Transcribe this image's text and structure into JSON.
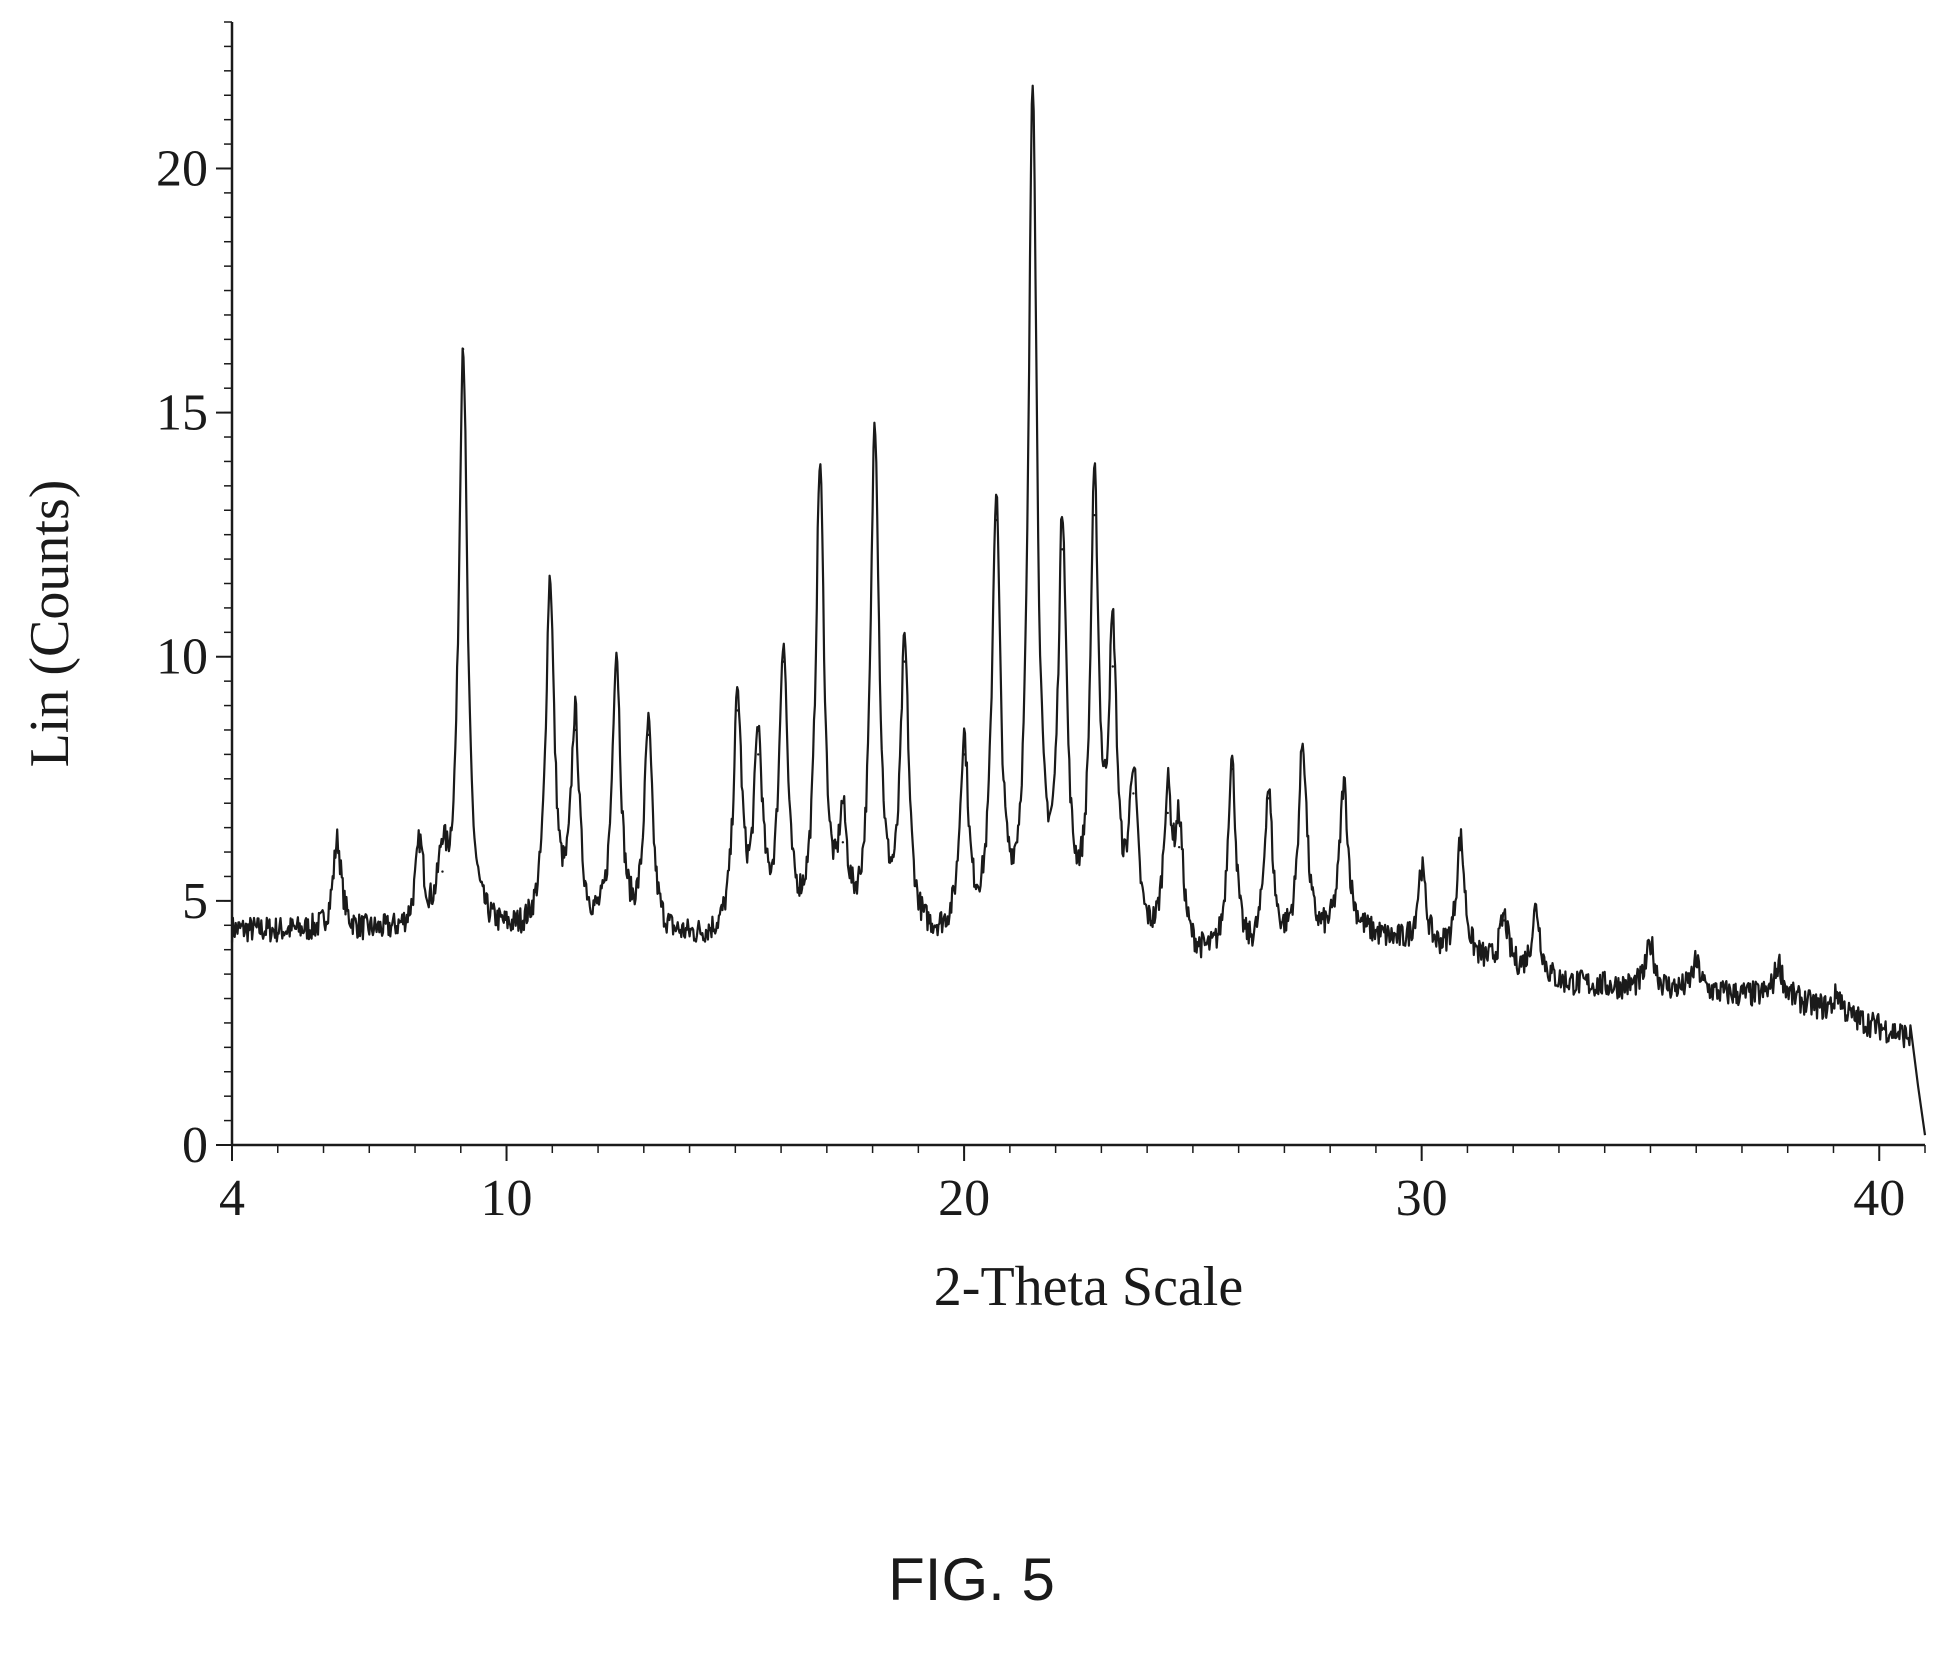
{
  "figure_caption": "FIG. 5",
  "chart_data": {
    "type": "line",
    "title": "",
    "xlabel": "2-Theta Scale",
    "ylabel": "Lin (Counts)",
    "xlim": [
      4,
      41
    ],
    "ylim": [
      0,
      23
    ],
    "x_ticks": [
      4,
      10,
      20,
      30,
      40
    ],
    "x_tick_labels": [
      "4",
      "10",
      "20",
      "30",
      "40"
    ],
    "y_ticks": [
      0,
      5,
      10,
      15,
      20
    ],
    "y_tick_labels": [
      "0",
      "5",
      "10",
      "15",
      "20"
    ],
    "grid": false,
    "legend": "none",
    "line_color": "#1a1a1a",
    "baseline_segments": [
      {
        "x": [
          4.0,
          8.0
        ],
        "y": [
          4.4,
          4.3
        ]
      },
      {
        "x": [
          8.0,
          15.0
        ],
        "y": [
          4.3,
          4.1
        ]
      },
      {
        "x": [
          15.0,
          22.0
        ],
        "y": [
          4.1,
          4.0
        ]
      },
      {
        "x": [
          22.0,
          26.0
        ],
        "y": [
          4.0,
          3.6
        ]
      },
      {
        "x": [
          26.0,
          28.6
        ],
        "y": [
          3.6,
          4.3
        ]
      },
      {
        "x": [
          28.6,
          33.0
        ],
        "y": [
          4.3,
          3.3
        ]
      },
      {
        "x": [
          33.0,
          38.0
        ],
        "y": [
          3.3,
          3.0
        ]
      },
      {
        "x": [
          38.0,
          40.7
        ],
        "y": [
          3.0,
          2.2
        ]
      }
    ],
    "cutoff": {
      "x_start": 40.7,
      "x_end": 41.0,
      "y_end": 0.2
    },
    "peaks": [
      {
        "x": 6.3,
        "y": 6.2
      },
      {
        "x": 8.1,
        "y": 6.0
      },
      {
        "x": 8.6,
        "y": 5.6
      },
      {
        "x": 9.05,
        "y": 16.3
      },
      {
        "x": 10.95,
        "y": 11.4
      },
      {
        "x": 11.5,
        "y": 8.5
      },
      {
        "x": 12.4,
        "y": 9.9
      },
      {
        "x": 13.1,
        "y": 8.4
      },
      {
        "x": 15.05,
        "y": 8.9
      },
      {
        "x": 15.5,
        "y": 8.0
      },
      {
        "x": 16.05,
        "y": 9.9
      },
      {
        "x": 16.85,
        "y": 13.6
      },
      {
        "x": 17.35,
        "y": 6.2
      },
      {
        "x": 18.05,
        "y": 14.5
      },
      {
        "x": 18.7,
        "y": 9.9
      },
      {
        "x": 20.0,
        "y": 8.0
      },
      {
        "x": 20.7,
        "y": 12.8
      },
      {
        "x": 21.5,
        "y": 21.4
      },
      {
        "x": 22.15,
        "y": 12.2
      },
      {
        "x": 22.85,
        "y": 12.9
      },
      {
        "x": 23.25,
        "y": 9.8
      },
      {
        "x": 23.7,
        "y": 7.2
      },
      {
        "x": 24.45,
        "y": 6.8
      },
      {
        "x": 24.7,
        "y": 6.1
      },
      {
        "x": 25.85,
        "y": 7.7
      },
      {
        "x": 26.65,
        "y": 7.1
      },
      {
        "x": 27.4,
        "y": 8.1
      },
      {
        "x": 28.3,
        "y": 7.3
      },
      {
        "x": 30.0,
        "y": 5.6
      },
      {
        "x": 30.85,
        "y": 6.2
      },
      {
        "x": 31.8,
        "y": 4.6
      },
      {
        "x": 32.5,
        "y": 4.8
      },
      {
        "x": 35.0,
        "y": 4.1
      },
      {
        "x": 36.0,
        "y": 3.7
      },
      {
        "x": 37.8,
        "y": 3.7
      },
      {
        "x": 39.1,
        "y": 3.1
      }
    ]
  }
}
